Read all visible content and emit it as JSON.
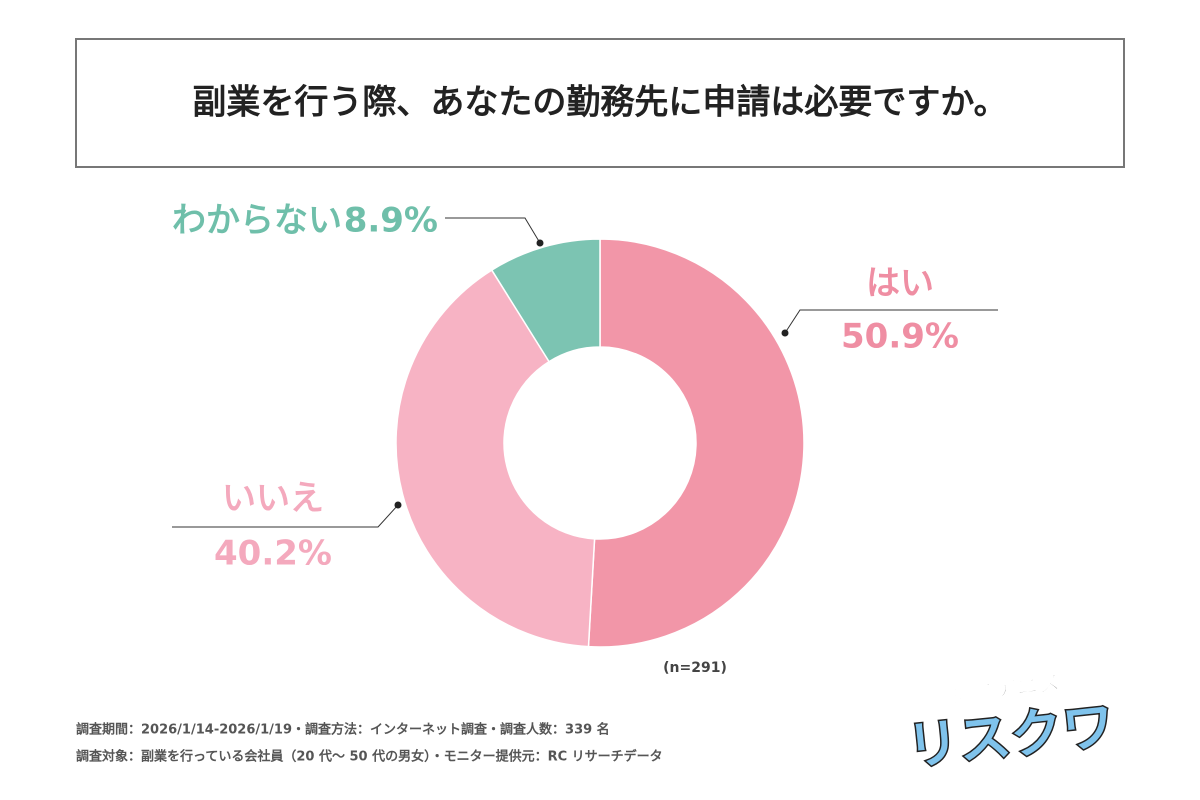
{
  "chart_data": {
    "type": "pie",
    "title": "副業を行う際、あなたの勤務先に申請は必要ですか。",
    "categories": [
      "はい",
      "いいえ",
      "わからない"
    ],
    "values": [
      50.9,
      40.2,
      8.9
    ],
    "value_labels": [
      "50.9%",
      "40.2%",
      "8.9%"
    ],
    "colors": [
      "#f296a8",
      "#f7b3c4",
      "#7cc4b2"
    ],
    "label_colors": [
      "#ef8ea3",
      "#f4a9bd",
      "#6fbfaa"
    ],
    "note": "(n=291)",
    "footnotes": [
      "調査期間：2026/1/14-2026/1/19・調査方法：インターネット調査・調査人数：339 名",
      "調査対象：副業を行っている会社員（20 代〜 50 代の男女）・モニター提供元：RC リサーチデータ"
    ]
  },
  "logo": {
    "subtitle": "副業アニメ",
    "title": "リスクワ"
  }
}
